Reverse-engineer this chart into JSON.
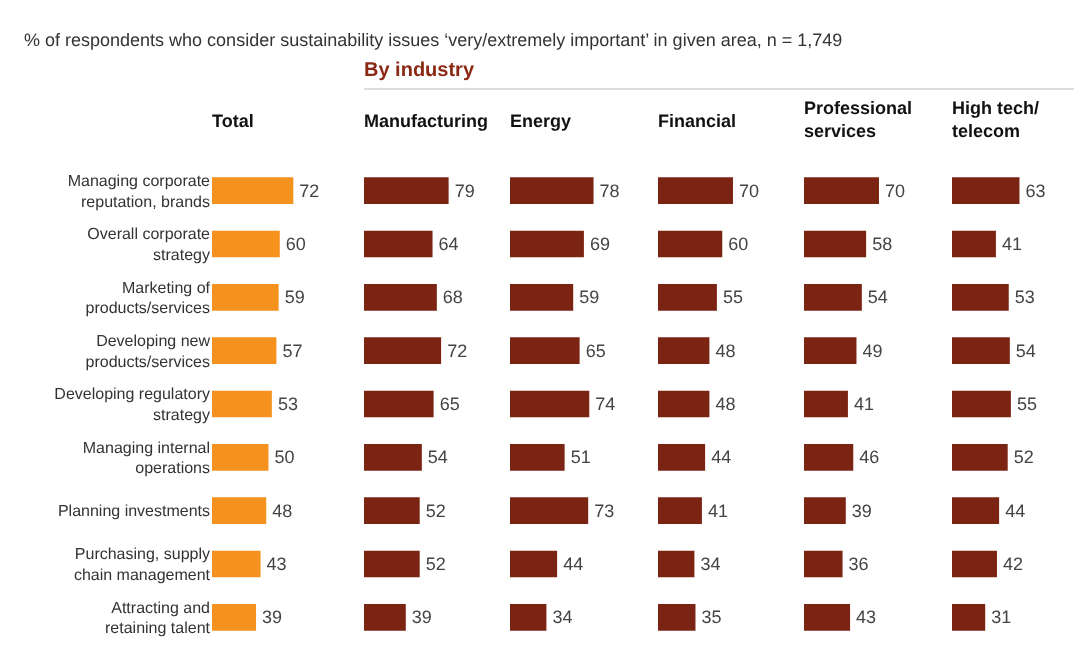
{
  "chart_data": [
    {
      "type": "bar",
      "orientation": "horizontal",
      "title": "Total",
      "annotations": [
        "% of respondents who consider sustainability issues ‘very/extremely important’ in given area, n = 1,749"
      ],
      "categories": [
        "Managing corporate reputation, brands",
        "Overall corporate strategy",
        "Marketing of products/services",
        "Developing new products/services",
        "Developing regulatory strategy",
        "Managing internal operations",
        "Planning investments",
        "Purchasing, supply chain management",
        "Attracting and retaining talent"
      ],
      "series": [
        {
          "color": "#f5921e",
          "values": [
            72,
            60,
            59,
            57,
            53,
            50,
            48,
            43,
            39
          ]
        }
      ],
      "data_labels": true,
      "tick_labels": "y"
    },
    {
      "type": "bar",
      "orientation": "horizontal",
      "title": "Manufacturing",
      "annotations": [
        "By industry"
      ],
      "categories": [
        null,
        null,
        null,
        null,
        null,
        null,
        null,
        null,
        null
      ],
      "series": [
        {
          "color": "#7b2413",
          "values": [
            79,
            64,
            68,
            72,
            65,
            54,
            52,
            52,
            39
          ]
        }
      ],
      "data_labels": true,
      "tick_labels": false
    },
    {
      "type": "bar",
      "orientation": "horizontal",
      "title": "Energy",
      "categories": [
        null,
        null,
        null,
        null,
        null,
        null,
        null,
        null,
        null
      ],
      "series": [
        {
          "color": "#7b2413",
          "values": [
            78,
            69,
            59,
            65,
            74,
            51,
            73,
            44,
            34
          ]
        }
      ],
      "data_labels": true,
      "tick_labels": false
    },
    {
      "type": "bar",
      "orientation": "horizontal",
      "title": "Financial",
      "categories": [
        null,
        null,
        null,
        null,
        null,
        null,
        null,
        null,
        null
      ],
      "series": [
        {
          "color": "#7b2413",
          "values": [
            70,
            60,
            55,
            48,
            48,
            44,
            41,
            34,
            35
          ]
        }
      ],
      "data_labels": true,
      "tick_labels": false
    },
    {
      "type": "bar",
      "orientation": "horizontal",
      "title": "Professional services",
      "categories": [
        null,
        null,
        null,
        null,
        null,
        null,
        null,
        null,
        null
      ],
      "series": [
        {
          "color": "#7b2413",
          "values": [
            70,
            58,
            54,
            49,
            41,
            46,
            39,
            36,
            43
          ]
        }
      ],
      "data_labels": true,
      "tick_labels": false
    },
    {
      "type": "bar",
      "orientation": "horizontal",
      "title": "High tech/ telecom",
      "categories": [
        null,
        null,
        null,
        null,
        null,
        null,
        null,
        null,
        null
      ],
      "series": [
        {
          "color": "#7b2413",
          "values": [
            63,
            41,
            53,
            54,
            55,
            52,
            44,
            42,
            31
          ]
        }
      ],
      "data_labels": true,
      "tick_labels": false
    }
  ]
}
